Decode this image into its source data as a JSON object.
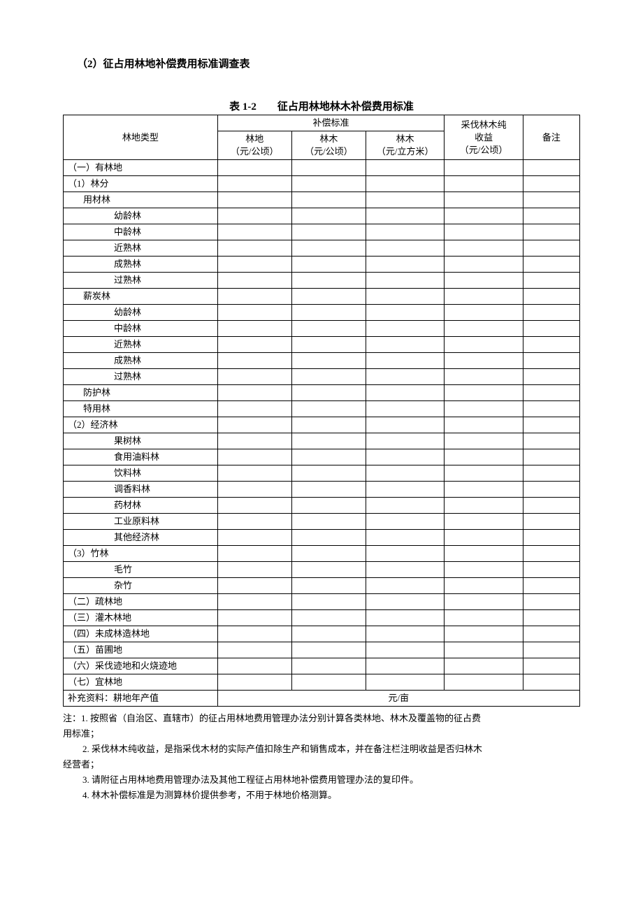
{
  "heading": "（2）征占用林地补偿费用标准调查表",
  "table_caption": "表 1-2　　征占用林地林木补偿费用标准",
  "headers": {
    "type": "林地类型",
    "comp_group": "补偿标准",
    "col_land_l1": "林地",
    "col_land_l2": "（元/公顷）",
    "col_wood_l1": "林木",
    "col_wood_l2": "（元/公顷）",
    "col_wood2_l1": "林木",
    "col_wood2_l2": "（元/立方米）",
    "col_harvest_l1": "采伐林木纯",
    "col_harvest_l2": "收益",
    "col_harvest_l3": "（元/公顷）",
    "remark": "备注"
  },
  "rows": [
    {
      "label": "（一）有林地",
      "indent": 0
    },
    {
      "label": "（1）林分",
      "indent": 1
    },
    {
      "label": "用材林",
      "indent": 2
    },
    {
      "label": "幼龄林",
      "indent": 3
    },
    {
      "label": "中龄林",
      "indent": 3
    },
    {
      "label": "近熟林",
      "indent": 3
    },
    {
      "label": "成熟林",
      "indent": 3
    },
    {
      "label": "过熟林",
      "indent": 3
    },
    {
      "label": "薪炭林",
      "indent": 2
    },
    {
      "label": "幼龄林",
      "indent": 3
    },
    {
      "label": "中龄林",
      "indent": 3
    },
    {
      "label": "近熟林",
      "indent": 3
    },
    {
      "label": "成熟林",
      "indent": 3
    },
    {
      "label": "过熟林",
      "indent": 3
    },
    {
      "label": "防护林",
      "indent": 2
    },
    {
      "label": "特用林",
      "indent": 2
    },
    {
      "label": "（2）经济林",
      "indent": 1
    },
    {
      "label": "果树林",
      "indent": 3
    },
    {
      "label": "食用油料林",
      "indent": 3
    },
    {
      "label": "饮料林",
      "indent": 3
    },
    {
      "label": "调香料林",
      "indent": 3
    },
    {
      "label": "药材林",
      "indent": 3
    },
    {
      "label": "工业原料林",
      "indent": 3
    },
    {
      "label": "其他经济林",
      "indent": 3
    },
    {
      "label": "（3）竹林",
      "indent": 1
    },
    {
      "label": "毛竹",
      "indent": 3
    },
    {
      "label": "杂竹",
      "indent": 3
    },
    {
      "label": "（二）疏林地",
      "indent": 0
    },
    {
      "label": "（三）灌木林地",
      "indent": 0
    },
    {
      "label": "（四）未成林造林地",
      "indent": 0
    },
    {
      "label": "（五）苗圃地",
      "indent": 0
    },
    {
      "label": "（六）采伐迹地和火烧迹地",
      "indent": 0
    },
    {
      "label": "（七）宜林地",
      "indent": 0
    }
  ],
  "supplement_label": "补充资料：耕地年产值",
  "supplement_unit": "元/亩",
  "notes": {
    "n1a": "注：1. 按照省（自治区、直辖市）的征占用林地费用管理办法分别计算各类林地、林木及覆盖物的征占费",
    "n1b": "用标准；",
    "n2a": "2. 采伐林木纯收益，是指采伐木材的实际产值扣除生产和销售成本，并在备注栏注明收益是否归林木",
    "n2b": "经营者；",
    "n3": "3. 请附征占用林地费用管理办法及其他工程征占用林地补偿费用管理办法的复印件。",
    "n4": "4. 林木补偿标准是为测算林价提供参考，不用于林地价格测算。"
  }
}
